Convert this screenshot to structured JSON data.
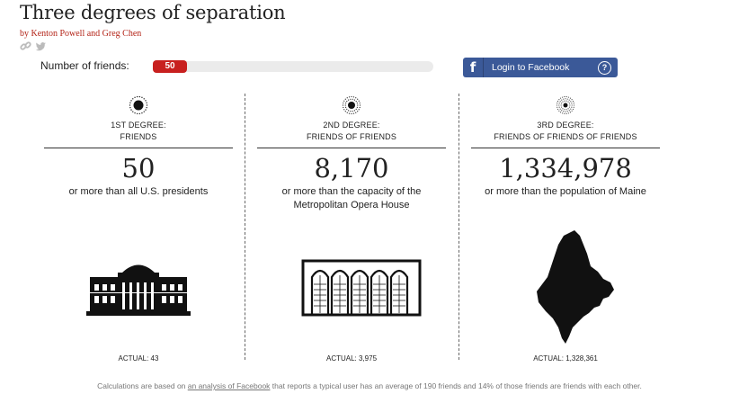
{
  "header": {
    "title": "Three degrees of separation",
    "byline": "by Kenton Powell and Greg Chen",
    "share_icons": [
      "link-icon",
      "twitter-icon"
    ]
  },
  "slider": {
    "label": "Number of friends:",
    "value": "50",
    "fill_fraction": 0.12,
    "color": "#c8201f"
  },
  "facebook": {
    "logo": "f",
    "label": "Login to Facebook",
    "help": "?",
    "color": "#3b5998"
  },
  "columns": [
    {
      "label_line1": "1st degree:",
      "label_line2": "Friends",
      "number": "50",
      "comparison": "or more than all U.S. presidents",
      "illustration": "white-house-icon",
      "actual": "ACTUAL: 43"
    },
    {
      "label_line1": "2nd degree:",
      "label_line2": "Friends of friends",
      "number": "8,170",
      "comparison": "or more than the capacity of the Metropolitan Opera House",
      "illustration": "opera-house-icon",
      "actual": "ACTUAL: 3,975"
    },
    {
      "label_line1": "3rd degree:",
      "label_line2": "Friends of friends of friends",
      "number": "1,334,978",
      "comparison": "or more than the population of Maine",
      "illustration": "maine-map-icon",
      "actual": "ACTUAL: 1,328,361"
    }
  ],
  "footnote": {
    "before": "Calculations are based on ",
    "link": "an analysis of Facebook",
    "after": " that reports a typical user has an average of 190 friends and 14% of those friends are friends with each other."
  }
}
